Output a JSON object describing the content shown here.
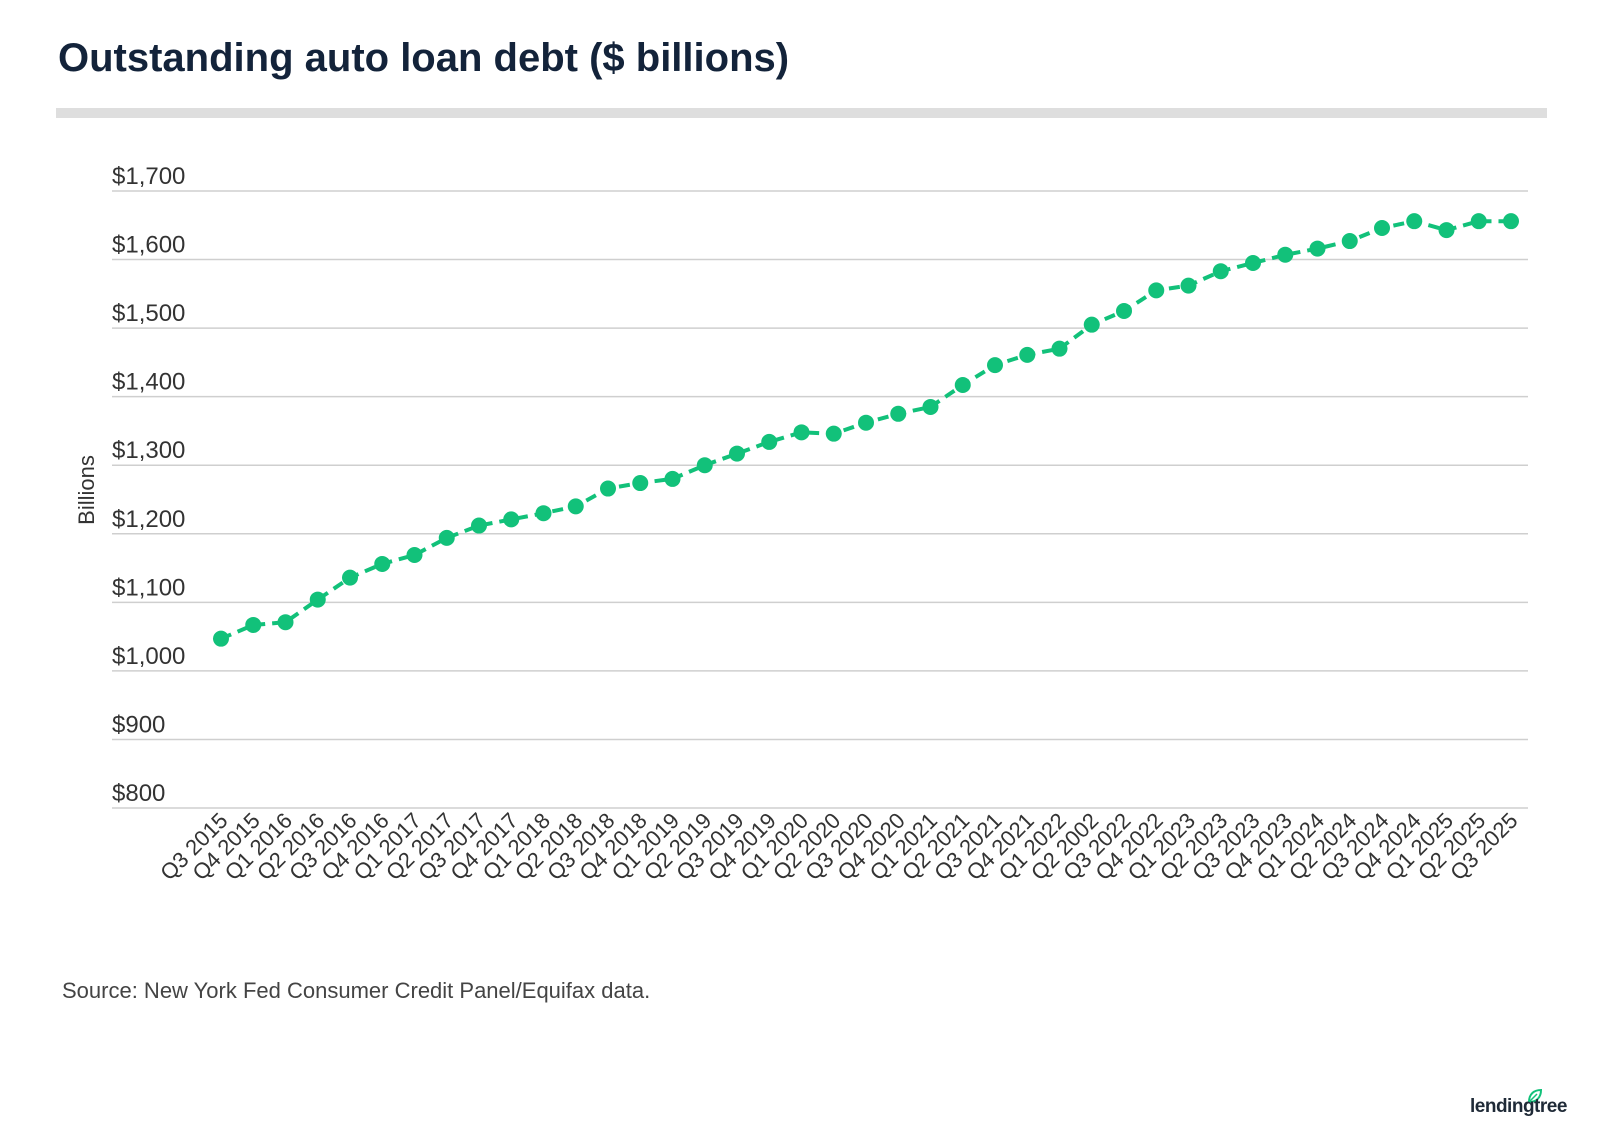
{
  "title": "Outstanding auto loan debt ($ billions)",
  "source": "Source: New York Fed Consumer Credit Panel/Equifax data.",
  "logo_text": "lendingtree",
  "logo_icon": "leaf-icon",
  "colors": {
    "series": "#12c17a",
    "title": "#13233a",
    "grid": "#cfcfcf",
    "axis_text": "#333333"
  },
  "chart_data": {
    "type": "line",
    "title": "Outstanding auto loan debt ($ billions)",
    "xlabel": "",
    "ylabel": "Billions",
    "ylim": [
      800,
      1700
    ],
    "yticks": [
      800,
      900,
      1000,
      1100,
      1200,
      1300,
      1400,
      1500,
      1600,
      1700
    ],
    "ytick_labels": [
      "$800",
      "$900",
      "$1,000",
      "$1,100",
      "$1,200",
      "$1,300",
      "$1,400",
      "$1,500",
      "$1,600",
      "$1,700"
    ],
    "grid": true,
    "line_style": "dashed",
    "markers": true,
    "categories": [
      "Q3 2015",
      "Q4 2015",
      "Q1 2016",
      "Q2 2016",
      "Q3 2016",
      "Q4 2016",
      "Q1 2017",
      "Q2 2017",
      "Q3 2017",
      "Q4 2017",
      "Q1 2018",
      "Q2 2018",
      "Q3 2018",
      "Q4 2018",
      "Q1 2019",
      "Q2 2019",
      "Q3 2019",
      "Q4 2019",
      "Q1 2020",
      "Q2 2020",
      "Q3 2020",
      "Q4 2020",
      "Q1 2021",
      "Q2 2021",
      "Q3 2021",
      "Q4 2021",
      "Q1 2022",
      "Q2 2002",
      "Q3 2022",
      "Q4 2022",
      "Q1 2023",
      "Q2 2023",
      "Q3 2023",
      "Q4 2023",
      "Q1 2024",
      "Q2 2024",
      "Q3 2024",
      "Q4 2024",
      "Q1 2025",
      "Q2 2025",
      "Q3 2025"
    ],
    "series": [
      {
        "values": [
          1047,
          1067,
          1071,
          1104,
          1136,
          1156,
          1169,
          1194,
          1212,
          1221,
          1230,
          1240,
          1266,
          1274,
          1280,
          1300,
          1317,
          1334,
          1348,
          1346,
          1362,
          1375,
          1385,
          1417,
          1446,
          1461,
          1470,
          1505,
          1525,
          1555,
          1562,
          1583,
          1595,
          1607,
          1616,
          1627,
          1646,
          1656,
          1643,
          1656,
          1656
        ]
      }
    ]
  }
}
